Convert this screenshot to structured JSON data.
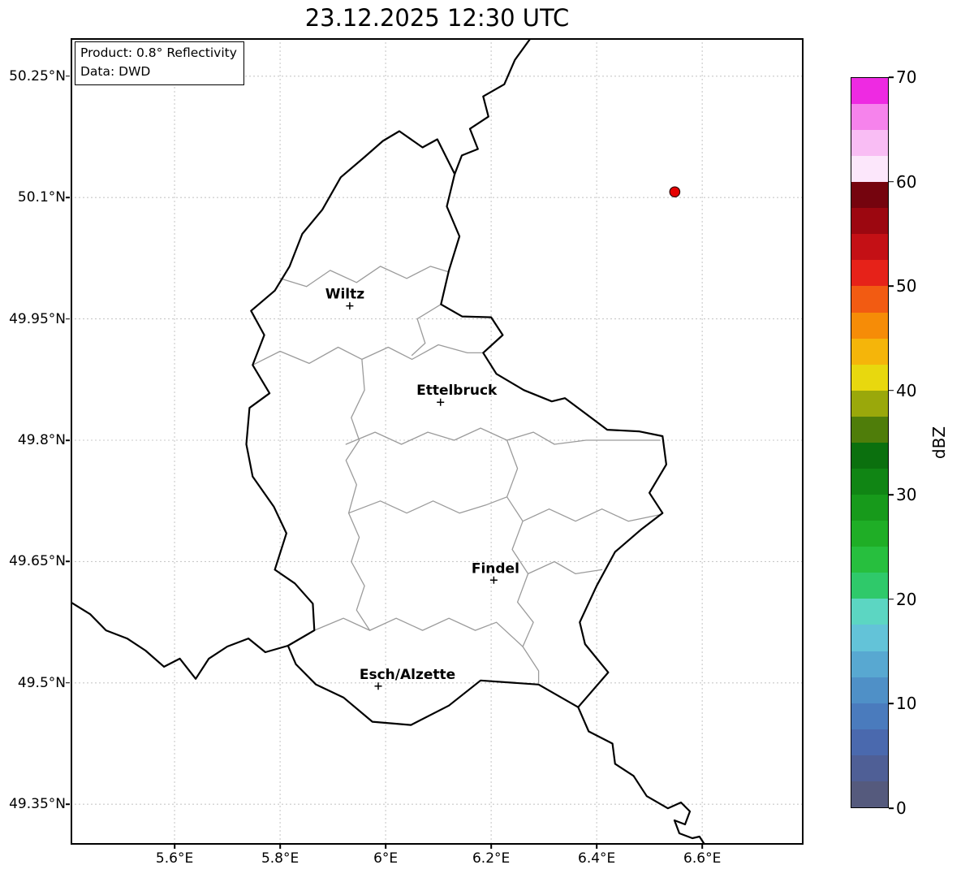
{
  "title": "23.12.2025 12:30 UTC",
  "info_box": {
    "line1": "Product: 0.8° Reflectivity",
    "line2": "Data: DWD"
  },
  "map": {
    "extent": {
      "lon_min": 5.403,
      "lon_max": 6.792,
      "lat_min": 49.3,
      "lat_max": 50.297
    },
    "cities": [
      {
        "name": "Wiltz",
        "lon": 5.932,
        "lat": 49.966,
        "label_dx": -6
      },
      {
        "name": "Ettelbruck",
        "lon": 6.104,
        "lat": 49.847,
        "label_dx": 20
      },
      {
        "name": "Findel",
        "lon": 6.205,
        "lat": 49.627,
        "label_dx": 2
      },
      {
        "name": "Esch/Alzette",
        "lon": 5.986,
        "lat": 49.496,
        "label_dx": 36
      }
    ],
    "radar_site": {
      "lon": 6.548,
      "lat": 50.107,
      "color": "#e60000"
    }
  },
  "axes": {
    "x_ticks": [
      {
        "label": "5.6°E",
        "value": 5.6
      },
      {
        "label": "5.8°E",
        "value": 5.8
      },
      {
        "label": "6°E",
        "value": 6.0
      },
      {
        "label": "6.2°E",
        "value": 6.2
      },
      {
        "label": "6.4°E",
        "value": 6.4
      },
      {
        "label": "6.6°E",
        "value": 6.6
      }
    ],
    "y_ticks": [
      {
        "label": "50.25°N",
        "value": 50.25
      },
      {
        "label": "50.1°N",
        "value": 50.1
      },
      {
        "label": "49.95°N",
        "value": 49.95
      },
      {
        "label": "49.8°N",
        "value": 49.8
      },
      {
        "label": "49.65°N",
        "value": 49.65
      },
      {
        "label": "49.5°N",
        "value": 49.5
      },
      {
        "label": "49.35°N",
        "value": 49.35
      }
    ]
  },
  "colorbar": {
    "label": "dBZ",
    "vmin": 0,
    "vmax": 70,
    "ticks": [
      0,
      10,
      20,
      30,
      40,
      50,
      60,
      70
    ],
    "colors": [
      "#555a7d",
      "#4f5f96",
      "#4a69ae",
      "#4a7bbd",
      "#4f90c7",
      "#58a8d1",
      "#63c3d8",
      "#5cd6c2",
      "#2fc96a",
      "#27bf3e",
      "#1fae26",
      "#179a1b",
      "#108514",
      "#0b700e",
      "#4f7d0a",
      "#9aa80b",
      "#e8d80e",
      "#f5b50a",
      "#f68c07",
      "#f25b12",
      "#e62219",
      "#c41015",
      "#9c0710",
      "#75040e",
      "#fce7fb",
      "#f9bdf4",
      "#f683ec",
      "#ee2ae2"
    ]
  }
}
